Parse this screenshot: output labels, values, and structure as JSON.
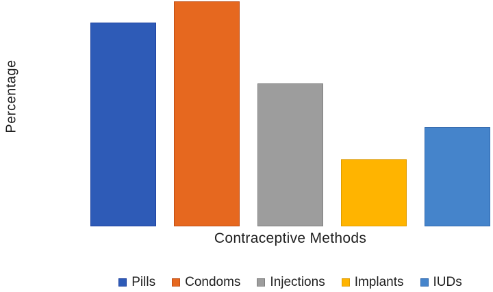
{
  "chart_data": {
    "type": "bar",
    "title": "",
    "xlabel": "Contraceptive Methods",
    "ylabel": "Percentage",
    "categories": [
      "Pills",
      "Condoms",
      "Injections",
      "Implants",
      "IUDs"
    ],
    "values": [
      90.5,
      100,
      63.5,
      29.8,
      44.1
    ],
    "value_note": "No y-axis tick labels, numbers or gridlines are visible; values are relative bar heights scaled so the tallest bar (Condoms) = 100",
    "ylim": [
      0,
      100
    ],
    "grid": false,
    "axis_lines_visible": false,
    "legend_position": "bottom",
    "series_colors": [
      "#2E5BB7",
      "#E6681F",
      "#9D9D9D",
      "#FFB400",
      "#4584CB"
    ],
    "series_border_colors": [
      "#1D41A0",
      "#C04E15",
      "#7E7E7E",
      "#DE9B00",
      "#2E67AE"
    ],
    "background_color": "#FFFFFF",
    "text_color": "#1F1F1F"
  }
}
